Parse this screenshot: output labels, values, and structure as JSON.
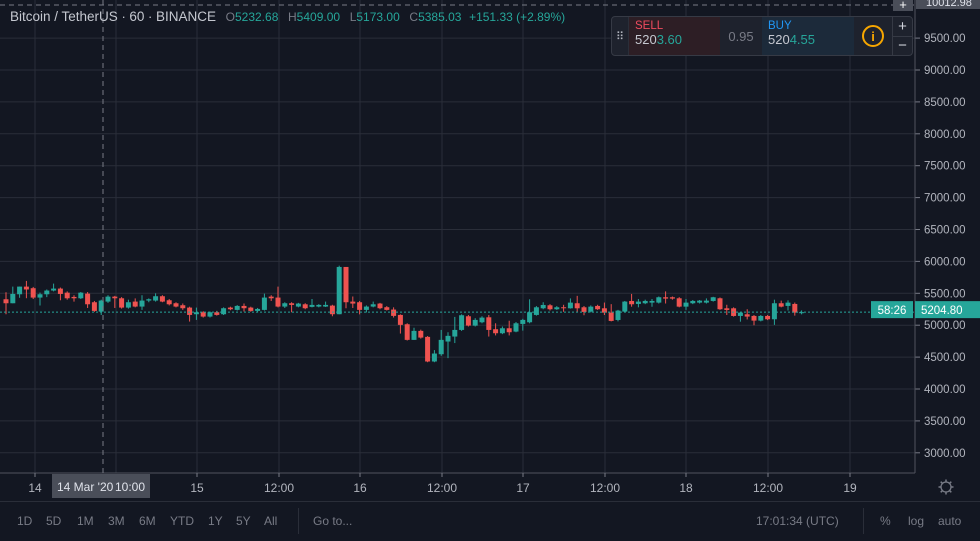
{
  "legend": {
    "symbol": "Bitcoin / TetherUS",
    "interval": "60",
    "exchange": "BINANCE",
    "o_label": "O",
    "o": "5232.68",
    "h_label": "H",
    "h": "5409.00",
    "l_label": "L",
    "l": "5173.00",
    "c_label": "C",
    "c": "5385.03",
    "change": "+151.33 (+2.89%)"
  },
  "trade": {
    "sell_label": "SELL",
    "sell_price_a": "520",
    "sell_price_b": "3.60",
    "spread": "0.95",
    "buy_label": "BUY",
    "buy_price_a": "520",
    "buy_price_b": "4.55",
    "plus": "+",
    "minus": "−"
  },
  "crosshair": {
    "price": "10012.98",
    "time_date": "14 Mar '20",
    "time_hour": "10:00"
  },
  "last_price": {
    "price": "5204.80",
    "countdown": "58:26"
  },
  "colors": {
    "up": "#26a69a",
    "down": "#ef5350",
    "background": "#131722",
    "grid": "#2a2e39"
  },
  "chart_data": {
    "type": "candlestick",
    "interval": "60",
    "yticks": [
      9500,
      9000,
      8500,
      8000,
      7500,
      7000,
      6500,
      6000,
      5500,
      5000,
      4500,
      4000,
      3500,
      3000
    ],
    "ytick_labels": [
      "9500.00",
      "9000.00",
      "8500.00",
      "8000.00",
      "7500.00",
      "7000.00",
      "6500.00",
      "6000.00",
      "5500.00",
      "5000.00",
      "4500.00",
      "4000.00",
      "3500.00",
      "3000.00"
    ],
    "ylim": [
      2800,
      10100
    ],
    "xticks": [
      "14",
      "15",
      "12:00",
      "16",
      "12:00",
      "17",
      "12:00",
      "18",
      "12:00",
      "19"
    ],
    "grid": true,
    "candles_ohlc": [
      [
        5407,
        5516,
        5172,
        5344
      ],
      [
        5344,
        5605,
        5344,
        5490
      ],
      [
        5485,
        5605,
        5430,
        5605
      ],
      [
        5605,
        5694,
        5423,
        5560
      ],
      [
        5580,
        5600,
        5410,
        5433
      ],
      [
        5433,
        5510,
        5308,
        5485
      ],
      [
        5485,
        5560,
        5440,
        5543
      ],
      [
        5543,
        5652,
        5530,
        5574
      ],
      [
        5574,
        5590,
        5391,
        5490
      ],
      [
        5510,
        5530,
        5400,
        5422
      ],
      [
        5443,
        5470,
        5370,
        5422
      ],
      [
        5422,
        5520,
        5410,
        5510
      ],
      [
        5495,
        5520,
        5270,
        5328
      ],
      [
        5360,
        5380,
        5210,
        5224
      ],
      [
        5213,
        5400,
        5160,
        5386
      ],
      [
        5370,
        5470,
        5350,
        5448
      ],
      [
        5448,
        5460,
        5270,
        5422
      ],
      [
        5422,
        5440,
        5260,
        5276
      ],
      [
        5276,
        5400,
        5260,
        5360
      ],
      [
        5370,
        5420,
        5280,
        5292
      ],
      [
        5292,
        5470,
        5240,
        5386
      ],
      [
        5386,
        5420,
        5360,
        5407
      ],
      [
        5386,
        5500,
        5370,
        5454
      ],
      [
        5454,
        5470,
        5360,
        5370
      ],
      [
        5391,
        5410,
        5310,
        5328
      ],
      [
        5344,
        5360,
        5280,
        5292
      ],
      [
        5313,
        5340,
        5240,
        5266
      ],
      [
        5276,
        5290,
        5057,
        5161
      ],
      [
        5172,
        5276,
        5083,
        5203
      ],
      [
        5203,
        5220,
        5120,
        5135
      ],
      [
        5135,
        5215,
        5120,
        5203
      ],
      [
        5203,
        5225,
        5150,
        5161
      ],
      [
        5172,
        5280,
        5160,
        5266
      ],
      [
        5276,
        5290,
        5235,
        5250
      ],
      [
        5240,
        5315,
        5230,
        5302
      ],
      [
        5302,
        5340,
        5215,
        5266
      ],
      [
        5276,
        5290,
        5210,
        5224
      ],
      [
        5224,
        5270,
        5200,
        5255
      ],
      [
        5240,
        5495,
        5230,
        5433
      ],
      [
        5448,
        5470,
        5380,
        5422
      ],
      [
        5433,
        5605,
        5280,
        5292
      ],
      [
        5292,
        5360,
        5270,
        5344
      ],
      [
        5344,
        5360,
        5203,
        5318
      ],
      [
        5292,
        5350,
        5280,
        5339
      ],
      [
        5328,
        5345,
        5250,
        5266
      ],
      [
        5287,
        5410,
        5280,
        5318
      ],
      [
        5292,
        5330,
        5280,
        5318
      ],
      [
        5292,
        5370,
        5285,
        5318
      ],
      [
        5307,
        5320,
        5140,
        5172
      ],
      [
        5172,
        5933,
        5172,
        5913
      ],
      [
        5913,
        5913,
        5266,
        5360
      ],
      [
        5370,
        5450,
        5270,
        5339
      ],
      [
        5360,
        5380,
        5170,
        5240
      ],
      [
        5240,
        5310,
        5200,
        5292
      ],
      [
        5292,
        5370,
        5280,
        5328
      ],
      [
        5339,
        5350,
        5250,
        5266
      ],
      [
        5282,
        5300,
        5230,
        5240
      ],
      [
        5245,
        5280,
        5120,
        5146
      ],
      [
        5161,
        5170,
        4869,
        5005
      ],
      [
        5015,
        5030,
        4760,
        4770
      ],
      [
        4770,
        4960,
        4770,
        4911
      ],
      [
        4911,
        4930,
        4790,
        4806
      ],
      [
        4817,
        4830,
        4420,
        4431
      ],
      [
        4431,
        4610,
        4420,
        4556
      ],
      [
        4545,
        4926,
        4520,
        4770
      ],
      [
        4744,
        4890,
        4483,
        4833
      ],
      [
        4822,
        5130,
        4720,
        4926
      ],
      [
        4926,
        5170,
        4910,
        5156
      ],
      [
        5140,
        5160,
        4980,
        4994
      ],
      [
        4993,
        5110,
        4980,
        5083
      ],
      [
        5046,
        5140,
        5030,
        5119
      ],
      [
        5124,
        5160,
        4822,
        4926
      ],
      [
        4937,
        5030,
        4840,
        4874
      ],
      [
        4874,
        4980,
        4860,
        4952
      ],
      [
        4952,
        5070,
        4840,
        4890
      ],
      [
        4900,
        5050,
        4890,
        5030
      ],
      [
        5020,
        5100,
        4915,
        5083
      ],
      [
        5046,
        5406,
        5030,
        5203
      ],
      [
        5161,
        5300,
        5150,
        5281
      ],
      [
        5265,
        5360,
        5250,
        5317
      ],
      [
        5312,
        5330,
        5230,
        5250
      ],
      [
        5250,
        5300,
        5240,
        5281
      ],
      [
        5281,
        5320,
        5210,
        5270
      ],
      [
        5265,
        5420,
        5260,
        5354
      ],
      [
        5344,
        5460,
        5210,
        5265
      ],
      [
        5281,
        5300,
        5155,
        5208
      ],
      [
        5213,
        5310,
        5200,
        5291
      ],
      [
        5302,
        5320,
        5240,
        5250
      ],
      [
        5265,
        5355,
        5160,
        5197
      ],
      [
        5197,
        5330,
        5060,
        5067
      ],
      [
        5082,
        5240,
        5060,
        5229
      ],
      [
        5213,
        5380,
        5200,
        5370
      ],
      [
        5380,
        5490,
        5290,
        5328
      ],
      [
        5333,
        5410,
        5280,
        5370
      ],
      [
        5344,
        5400,
        5330,
        5380
      ],
      [
        5354,
        5410,
        5290,
        5380
      ],
      [
        5354,
        5450,
        5340,
        5438
      ],
      [
        5438,
        5530,
        5340,
        5417
      ],
      [
        5438,
        5450,
        5400,
        5417
      ],
      [
        5422,
        5440,
        5280,
        5291
      ],
      [
        5291,
        5410,
        5240,
        5354
      ],
      [
        5344,
        5395,
        5330,
        5380
      ],
      [
        5354,
        5395,
        5340,
        5385
      ],
      [
        5354,
        5420,
        5340,
        5385
      ],
      [
        5380,
        5445,
        5370,
        5438
      ],
      [
        5422,
        5435,
        5240,
        5250
      ],
      [
        5265,
        5320,
        5160,
        5239
      ],
      [
        5265,
        5280,
        5135,
        5145
      ],
      [
        5145,
        5205,
        5055,
        5197
      ],
      [
        5171,
        5250,
        5090,
        5135
      ],
      [
        5145,
        5160,
        5000,
        5072
      ],
      [
        5072,
        5160,
        5060,
        5145
      ],
      [
        5145,
        5160,
        5080,
        5093
      ],
      [
        5093,
        5400,
        5005,
        5344
      ],
      [
        5344,
        5385,
        5280,
        5291
      ],
      [
        5302,
        5390,
        5230,
        5354
      ],
      [
        5333,
        5355,
        5150,
        5197
      ],
      [
        5197,
        5232,
        5170,
        5204
      ]
    ]
  },
  "bottom": {
    "ranges": [
      "1D",
      "5D",
      "1M",
      "3M",
      "6M",
      "YTD",
      "1Y",
      "5Y",
      "All"
    ],
    "goto": "Go to...",
    "clock": "17:01:34 (UTC)",
    "percent": "%",
    "log": "log",
    "auto": "auto"
  },
  "icons": {
    "settings": "gear-icon",
    "info": "info-icon",
    "drag": "drag-handle-icon"
  }
}
